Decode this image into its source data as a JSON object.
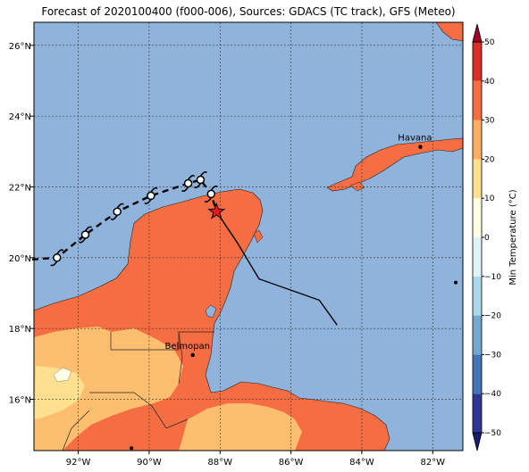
{
  "title": "Forecast of 2020100400 (f000-006), Sources: GDACS (TC track), GFS (Meteo)",
  "map": {
    "lon_range": [
      -93.25,
      -81.15
    ],
    "lat_range": [
      14.55,
      26.65
    ],
    "lon_ticks": [
      {
        "value": -92,
        "label": "92°W"
      },
      {
        "value": -90,
        "label": "90°W"
      },
      {
        "value": -88,
        "label": "88°W"
      },
      {
        "value": -86,
        "label": "86°W"
      },
      {
        "value": -84,
        "label": "84°W"
      },
      {
        "value": -82,
        "label": "82°W"
      }
    ],
    "lat_ticks": [
      {
        "value": 16,
        "label": "16°N"
      },
      {
        "value": 18,
        "label": "18°N"
      },
      {
        "value": 20,
        "label": "20°N"
      },
      {
        "value": 22,
        "label": "22°N"
      },
      {
        "value": 24,
        "label": "24°N"
      },
      {
        "value": 26,
        "label": "26°N"
      }
    ],
    "cities": [
      {
        "name": "Havana",
        "lon": -82.35,
        "lat": 23.13
      },
      {
        "name": "Belmopan",
        "lon": -88.77,
        "lat": 17.25
      }
    ],
    "extra_dots": [
      {
        "lon": -90.5,
        "lat": 14.62
      },
      {
        "lon": -81.35,
        "lat": 19.3
      }
    ],
    "storm_current": {
      "lon": -88.1,
      "lat": 21.3
    },
    "forecast_track": [
      {
        "lon": -93.3,
        "lat": 19.95
      },
      {
        "lon": -92.6,
        "lat": 20.0
      },
      {
        "lon": -91.8,
        "lat": 20.65
      },
      {
        "lon": -90.9,
        "lat": 21.3
      },
      {
        "lon": -89.95,
        "lat": 21.75
      },
      {
        "lon": -88.9,
        "lat": 22.1
      },
      {
        "lon": -88.55,
        "lat": 22.2
      },
      {
        "lon": -88.25,
        "lat": 21.8
      },
      {
        "lon": -88.1,
        "lat": 21.3
      }
    ],
    "forecast_symbols": [
      {
        "lon": -92.6,
        "lat": 20.0
      },
      {
        "lon": -91.8,
        "lat": 20.65
      },
      {
        "lon": -90.9,
        "lat": 21.3
      },
      {
        "lon": -89.95,
        "lat": 21.75
      },
      {
        "lon": -88.9,
        "lat": 22.1
      },
      {
        "lon": -88.55,
        "lat": 22.2
      },
      {
        "lon": -88.25,
        "lat": 21.8
      }
    ],
    "past_track": [
      {
        "lon": -88.1,
        "lat": 21.3
      },
      {
        "lon": -87.5,
        "lat": 20.4
      },
      {
        "lon": -86.9,
        "lat": 19.4
      },
      {
        "lon": -85.2,
        "lat": 18.8
      },
      {
        "lon": -84.7,
        "lat": 18.1
      }
    ],
    "colors": {
      "sea": "#8fb3da",
      "land_warm": "#f46d43",
      "land_mild": "#fdbf6f",
      "land_pale": "#fee090",
      "land_light": "#ffffe5",
      "grid": "#333333",
      "storm_star": "#e31a1c"
    }
  },
  "colorbar": {
    "label": "Min Temperature (°C)",
    "min": -50,
    "max": 50,
    "ticks": [
      {
        "value": -50,
        "label": "−50"
      },
      {
        "value": -40,
        "label": "−40"
      },
      {
        "value": -30,
        "label": "−30"
      },
      {
        "value": -20,
        "label": "−20"
      },
      {
        "value": -10,
        "label": "−10"
      },
      {
        "value": 0,
        "label": "0"
      },
      {
        "value": 10,
        "label": "10"
      },
      {
        "value": 20,
        "label": "20"
      },
      {
        "value": 30,
        "label": "30"
      },
      {
        "value": 40,
        "label": "40"
      },
      {
        "value": 50,
        "label": "50"
      }
    ],
    "bins": [
      {
        "from": -50,
        "to": -40,
        "color": "#313695"
      },
      {
        "from": -40,
        "to": -30,
        "color": "#4575b4"
      },
      {
        "from": -30,
        "to": -20,
        "color": "#74a9cf"
      },
      {
        "from": -20,
        "to": -10,
        "color": "#abd9e9"
      },
      {
        "from": -10,
        "to": 0,
        "color": "#e0f3f8"
      },
      {
        "from": 0,
        "to": 10,
        "color": "#ffffe5"
      },
      {
        "from": 10,
        "to": 20,
        "color": "#fee090"
      },
      {
        "from": 20,
        "to": 30,
        "color": "#fdae61"
      },
      {
        "from": 30,
        "to": 40,
        "color": "#f46d43"
      },
      {
        "from": 40,
        "to": 50,
        "color": "#d73027"
      }
    ],
    "under_color": "#1a1a6e",
    "over_color": "#a50026"
  }
}
